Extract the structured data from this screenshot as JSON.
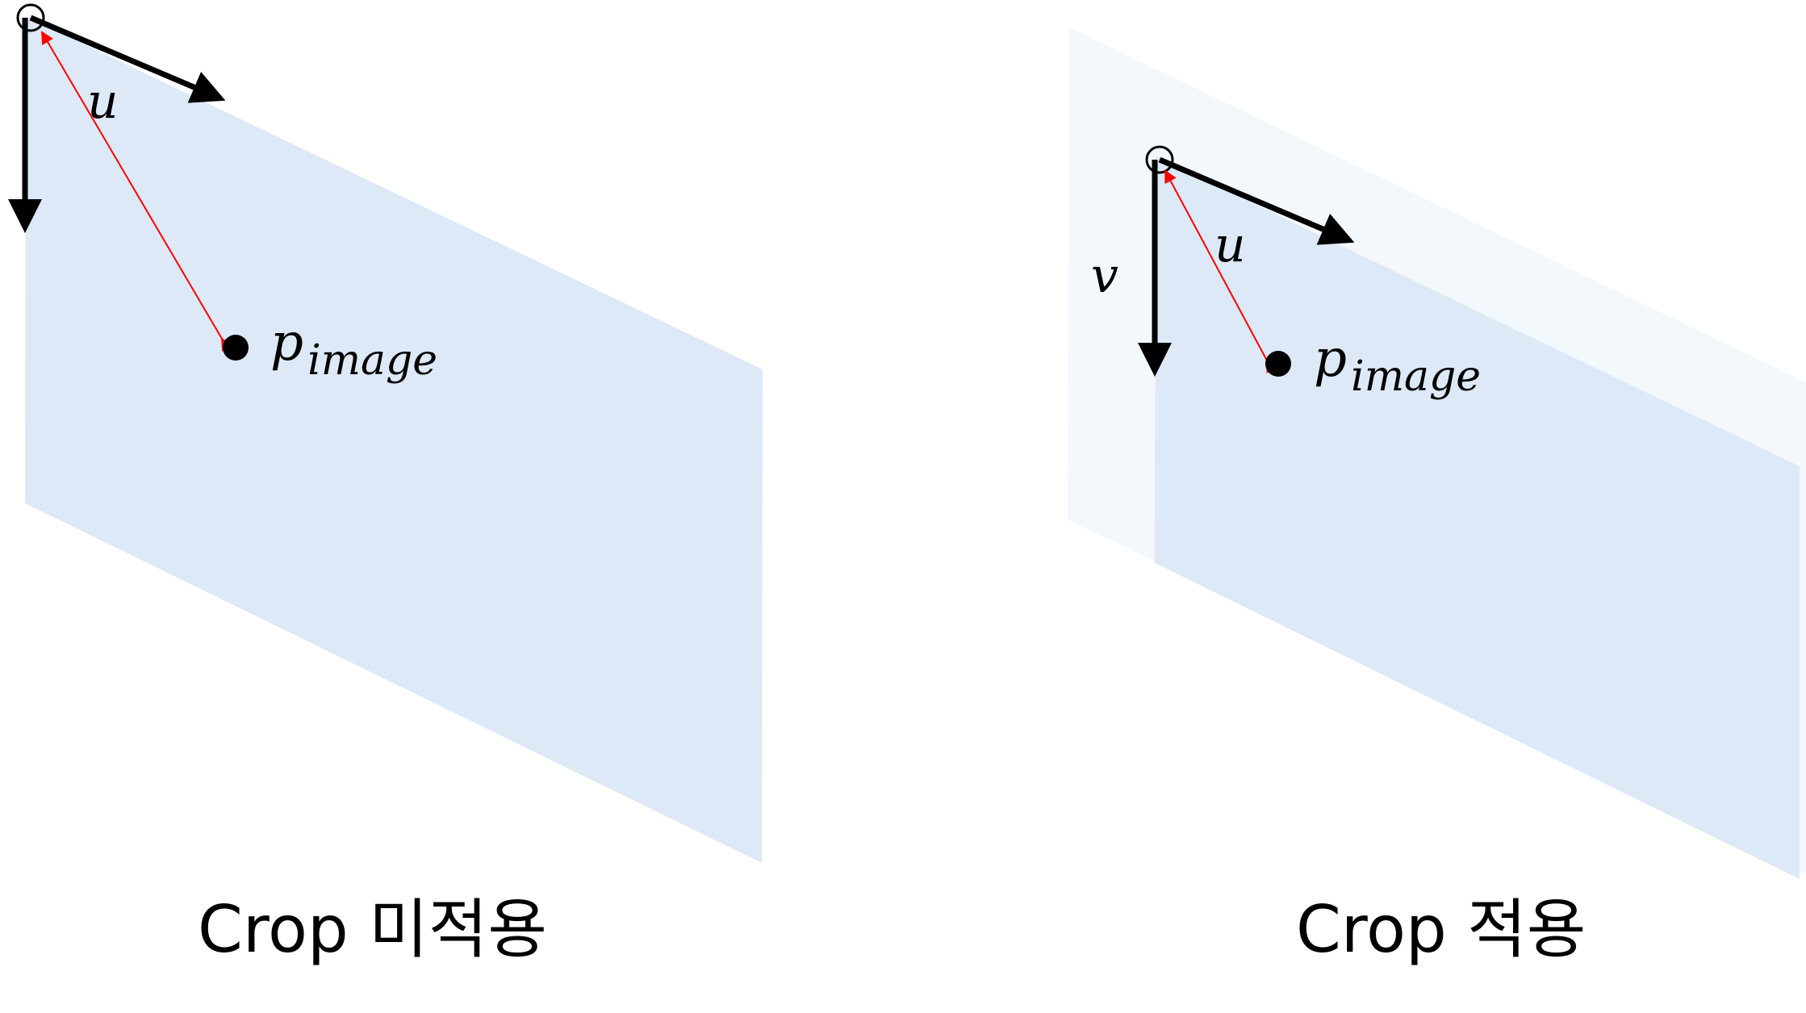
{
  "left_panel": {
    "u_label": "u",
    "point_label_main": "p",
    "point_label_sub": "image",
    "caption": "Crop 미적용"
  },
  "right_panel": {
    "u_label": "u",
    "v_label": "v",
    "point_label_main": "p",
    "point_label_sub": "image",
    "caption": "Crop 적용"
  },
  "colors": {
    "plane_fill": "#dde9f6",
    "plane_fill_faded": "#f3f8fd",
    "axis": "#000000",
    "vector": "#ff0000"
  }
}
